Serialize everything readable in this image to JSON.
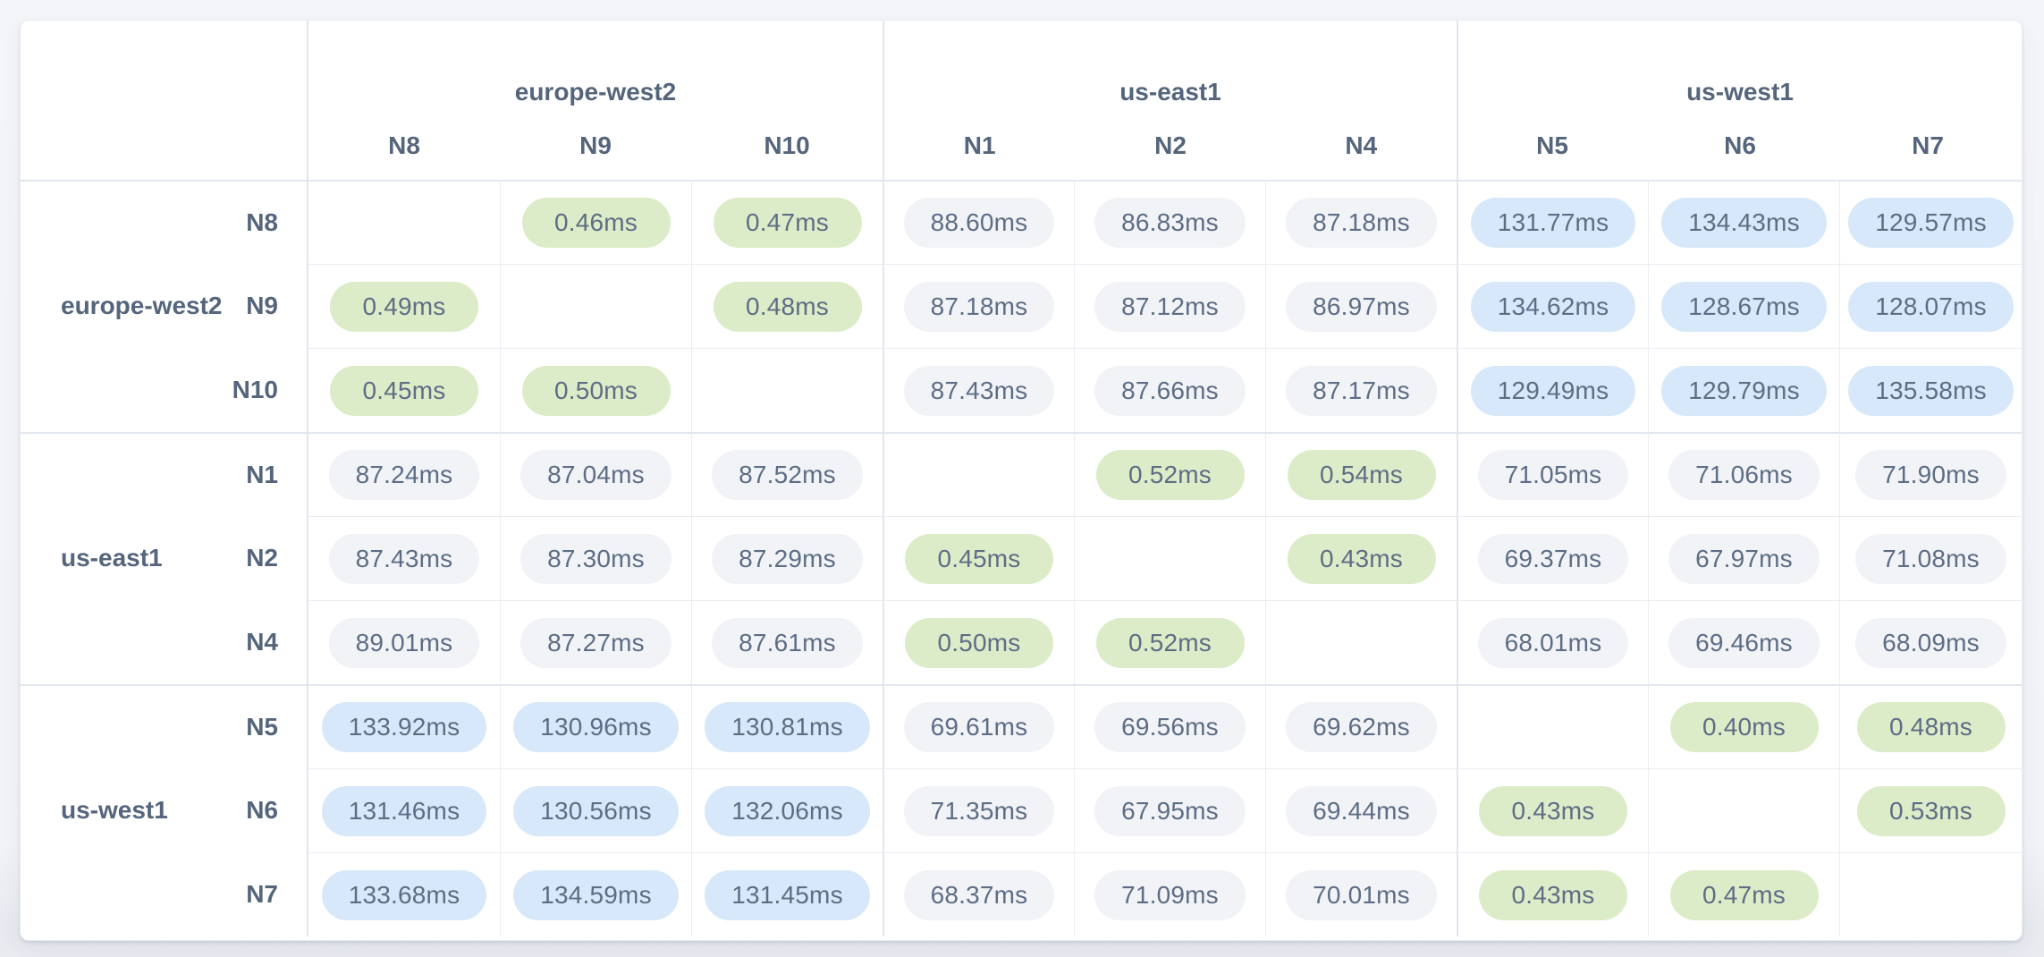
{
  "colors": {
    "intra_pill": "#ddecc8",
    "mid_pill": "#f1f3f7",
    "high_pill": "#d7e8fa",
    "value_text": "#5d6d85",
    "label_text": "#55657c",
    "grid_line": "#e9edf3",
    "group_line": "#e2e6ee",
    "card_bg": "#ffffff",
    "page_bg": "#f2f4f8"
  },
  "column_groups": [
    {
      "label": "europe-west2",
      "nodes": [
        "N8",
        "N9",
        "N10"
      ]
    },
    {
      "label": "us-east1",
      "nodes": [
        "N1",
        "N2",
        "N4"
      ]
    },
    {
      "label": "us-west1",
      "nodes": [
        "N5",
        "N6",
        "N7"
      ]
    }
  ],
  "row_groups": [
    {
      "label": "europe-west2",
      "nodes": [
        "N8",
        "N9",
        "N10"
      ]
    },
    {
      "label": "us-east1",
      "nodes": [
        "N1",
        "N2",
        "N4"
      ]
    },
    {
      "label": "us-west1",
      "nodes": [
        "N5",
        "N6",
        "N7"
      ]
    }
  ],
  "matrix": {
    "rows": [
      {
        "node": "N8",
        "cells": [
          {
            "value": "",
            "tier": "self"
          },
          {
            "value": "0.46ms",
            "tier": "intra"
          },
          {
            "value": "0.47ms",
            "tier": "intra"
          },
          {
            "value": "88.60ms",
            "tier": "mid"
          },
          {
            "value": "86.83ms",
            "tier": "mid"
          },
          {
            "value": "87.18ms",
            "tier": "mid"
          },
          {
            "value": "131.77ms",
            "tier": "high"
          },
          {
            "value": "134.43ms",
            "tier": "high"
          },
          {
            "value": "129.57ms",
            "tier": "high"
          }
        ]
      },
      {
        "node": "N9",
        "cells": [
          {
            "value": "0.49ms",
            "tier": "intra"
          },
          {
            "value": "",
            "tier": "self"
          },
          {
            "value": "0.48ms",
            "tier": "intra"
          },
          {
            "value": "87.18ms",
            "tier": "mid"
          },
          {
            "value": "87.12ms",
            "tier": "mid"
          },
          {
            "value": "86.97ms",
            "tier": "mid"
          },
          {
            "value": "134.62ms",
            "tier": "high"
          },
          {
            "value": "128.67ms",
            "tier": "high"
          },
          {
            "value": "128.07ms",
            "tier": "high"
          }
        ]
      },
      {
        "node": "N10",
        "cells": [
          {
            "value": "0.45ms",
            "tier": "intra"
          },
          {
            "value": "0.50ms",
            "tier": "intra"
          },
          {
            "value": "",
            "tier": "self"
          },
          {
            "value": "87.43ms",
            "tier": "mid"
          },
          {
            "value": "87.66ms",
            "tier": "mid"
          },
          {
            "value": "87.17ms",
            "tier": "mid"
          },
          {
            "value": "129.49ms",
            "tier": "high"
          },
          {
            "value": "129.79ms",
            "tier": "high"
          },
          {
            "value": "135.58ms",
            "tier": "high"
          }
        ]
      },
      {
        "node": "N1",
        "cells": [
          {
            "value": "87.24ms",
            "tier": "mid"
          },
          {
            "value": "87.04ms",
            "tier": "mid"
          },
          {
            "value": "87.52ms",
            "tier": "mid"
          },
          {
            "value": "",
            "tier": "self"
          },
          {
            "value": "0.52ms",
            "tier": "intra"
          },
          {
            "value": "0.54ms",
            "tier": "intra"
          },
          {
            "value": "71.05ms",
            "tier": "mid"
          },
          {
            "value": "71.06ms",
            "tier": "mid"
          },
          {
            "value": "71.90ms",
            "tier": "mid"
          }
        ]
      },
      {
        "node": "N2",
        "cells": [
          {
            "value": "87.43ms",
            "tier": "mid"
          },
          {
            "value": "87.30ms",
            "tier": "mid"
          },
          {
            "value": "87.29ms",
            "tier": "mid"
          },
          {
            "value": "0.45ms",
            "tier": "intra"
          },
          {
            "value": "",
            "tier": "self"
          },
          {
            "value": "0.43ms",
            "tier": "intra"
          },
          {
            "value": "69.37ms",
            "tier": "mid"
          },
          {
            "value": "67.97ms",
            "tier": "mid"
          },
          {
            "value": "71.08ms",
            "tier": "mid"
          }
        ]
      },
      {
        "node": "N4",
        "cells": [
          {
            "value": "89.01ms",
            "tier": "mid"
          },
          {
            "value": "87.27ms",
            "tier": "mid"
          },
          {
            "value": "87.61ms",
            "tier": "mid"
          },
          {
            "value": "0.50ms",
            "tier": "intra"
          },
          {
            "value": "0.52ms",
            "tier": "intra"
          },
          {
            "value": "",
            "tier": "self"
          },
          {
            "value": "68.01ms",
            "tier": "mid"
          },
          {
            "value": "69.46ms",
            "tier": "mid"
          },
          {
            "value": "68.09ms",
            "tier": "mid"
          }
        ]
      },
      {
        "node": "N5",
        "cells": [
          {
            "value": "133.92ms",
            "tier": "high"
          },
          {
            "value": "130.96ms",
            "tier": "high"
          },
          {
            "value": "130.81ms",
            "tier": "high"
          },
          {
            "value": "69.61ms",
            "tier": "mid"
          },
          {
            "value": "69.56ms",
            "tier": "mid"
          },
          {
            "value": "69.62ms",
            "tier": "mid"
          },
          {
            "value": "",
            "tier": "self"
          },
          {
            "value": "0.40ms",
            "tier": "intra"
          },
          {
            "value": "0.48ms",
            "tier": "intra"
          }
        ]
      },
      {
        "node": "N6",
        "cells": [
          {
            "value": "131.46ms",
            "tier": "high"
          },
          {
            "value": "130.56ms",
            "tier": "high"
          },
          {
            "value": "132.06ms",
            "tier": "high"
          },
          {
            "value": "71.35ms",
            "tier": "mid"
          },
          {
            "value": "67.95ms",
            "tier": "mid"
          },
          {
            "value": "69.44ms",
            "tier": "mid"
          },
          {
            "value": "0.43ms",
            "tier": "intra"
          },
          {
            "value": "",
            "tier": "self"
          },
          {
            "value": "0.53ms",
            "tier": "intra"
          }
        ]
      },
      {
        "node": "N7",
        "cells": [
          {
            "value": "133.68ms",
            "tier": "high"
          },
          {
            "value": "134.59ms",
            "tier": "high"
          },
          {
            "value": "131.45ms",
            "tier": "high"
          },
          {
            "value": "68.37ms",
            "tier": "mid"
          },
          {
            "value": "71.09ms",
            "tier": "mid"
          },
          {
            "value": "70.01ms",
            "tier": "mid"
          },
          {
            "value": "0.43ms",
            "tier": "intra"
          },
          {
            "value": "0.47ms",
            "tier": "intra"
          },
          {
            "value": "",
            "tier": "self"
          }
        ]
      }
    ]
  }
}
